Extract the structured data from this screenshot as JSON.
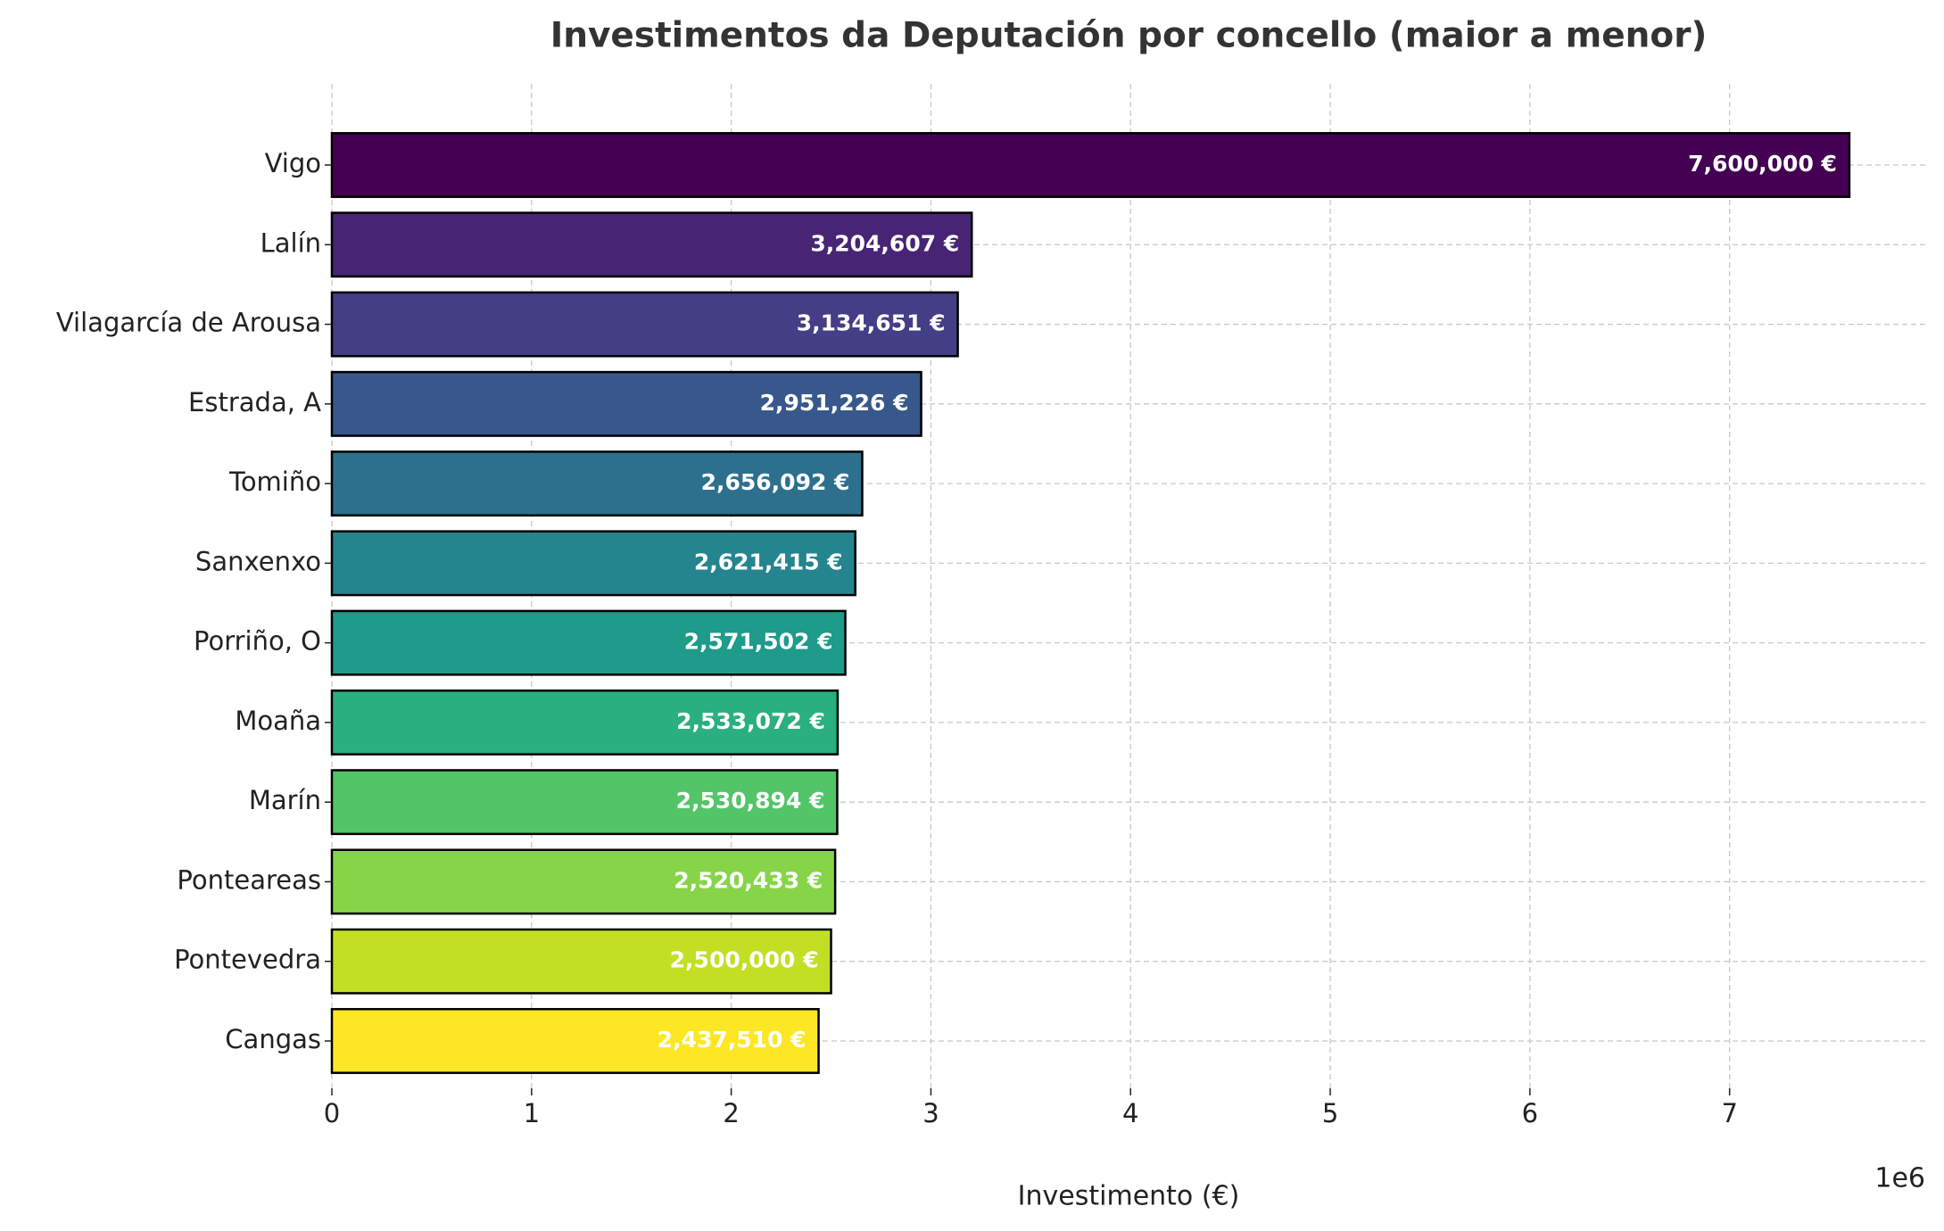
{
  "chart_data": {
    "type": "barh",
    "title": "Investimentos da Deputación por concello (maior a menor)",
    "xlabel": "Investimento (€)",
    "x_offset_label": "1e6",
    "categories": [
      "Vigo",
      "Lalín",
      "Vilagarcía de Arousa",
      "Estrada, A",
      "Tomiño",
      "Sanxenxo",
      "Porriño, O",
      "Moaña",
      "Marín",
      "Ponteareas",
      "Pontevedra",
      "Cangas"
    ],
    "values": [
      7600000,
      3204607,
      3134651,
      2951226,
      2656092,
      2621415,
      2571502,
      2533072,
      2530894,
      2520433,
      2500000,
      2437510
    ],
    "value_labels": [
      "7,600,000 €",
      "3,204,607 €",
      "3,134,651 €",
      "2,951,226 €",
      "2,656,092 €",
      "2,621,415 €",
      "2,571,502 €",
      "2,533,072 €",
      "2,530,894 €",
      "2,520,433 €",
      "2,500,000 €",
      "2,437,510 €"
    ],
    "colors": [
      "#440154",
      "#482475",
      "#433e85",
      "#38588c",
      "#2d708e",
      "#25858e",
      "#1e9b8a",
      "#2ab07f",
      "#52c569",
      "#86d549",
      "#c2df23",
      "#fde725"
    ],
    "xlim": [
      0,
      7980000
    ],
    "xticks": [
      {
        "value": 0,
        "label": "0"
      },
      {
        "value": 1000000,
        "label": "1"
      },
      {
        "value": 2000000,
        "label": "2"
      },
      {
        "value": 3000000,
        "label": "3"
      },
      {
        "value": 4000000,
        "label": "4"
      },
      {
        "value": 5000000,
        "label": "5"
      },
      {
        "value": 6000000,
        "label": "6"
      },
      {
        "value": 7000000,
        "label": "7"
      }
    ],
    "grid": true
  }
}
